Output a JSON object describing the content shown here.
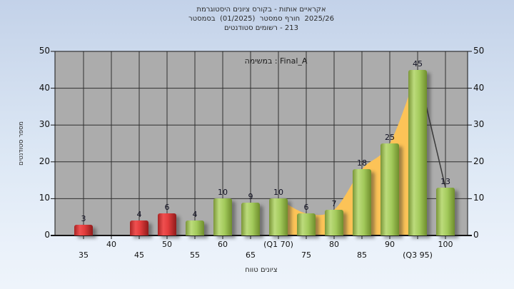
{
  "header": {
    "title_lines": [
      "היסטוגרמת‎ ציונים‎ בקורס‎ - אותות‎ אקראיים",
      "בסמסטר‎  (01/2025)  סמסטר‎ חורף‎  2025/26",
      "סטודנטים‎ רשומים‎ - 213"
    ]
  },
  "legend": {
    "label": "במשימה‎ : Final_A"
  },
  "axes": {
    "ylabel_left": "מספר סטודנטים",
    "xlabel": "טווח‎ ציונים"
  },
  "chart_data": {
    "type": "bar",
    "title": "היסטוגרמת ציונים בקורס - אותות אקראיים",
    "subtitle": "בסמסטר (01/2025) סמסטר חורף 2025/26",
    "annotation": "סטודנטים רשומים - 213",
    "legend": "במשימה : Final_A",
    "xlabel": "טווח ציונים",
    "ylabel": "מספר סטודנטים",
    "categories": [
      35,
      40,
      45,
      50,
      55,
      60,
      65,
      70,
      75,
      80,
      85,
      90,
      95,
      100
    ],
    "category_labels": [
      "35",
      "40",
      "45",
      "50",
      "55",
      "60",
      "65",
      "(Q1 70)",
      "75",
      "80",
      "85",
      "90",
      "(Q3 95)",
      "100"
    ],
    "values": [
      3,
      0,
      4,
      6,
      4,
      10,
      9,
      10,
      6,
      7,
      18,
      25,
      45,
      13
    ],
    "bar_colors": [
      "red",
      "none",
      "red",
      "red",
      "green",
      "green",
      "green",
      "green",
      "green",
      "green",
      "green",
      "green",
      "green",
      "green"
    ],
    "ylim": [
      0,
      50
    ],
    "yticks": [
      0,
      10,
      20,
      30,
      40,
      50
    ],
    "grid": true,
    "area_overlay": {
      "x": [
        70,
        75,
        80,
        85,
        90,
        95
      ],
      "values": [
        10,
        6,
        7,
        18,
        25,
        45
      ],
      "color": "#fcc357"
    },
    "line_overlay": {
      "x": [
        95,
        100
      ],
      "values": [
        45,
        13
      ],
      "color": "#3a3a3a"
    },
    "colors": {
      "red_bar": "#e33d3d",
      "green_bar": "#a3ca5b",
      "plot_bg": "#acacac",
      "grid": "#2f2f2f"
    }
  }
}
